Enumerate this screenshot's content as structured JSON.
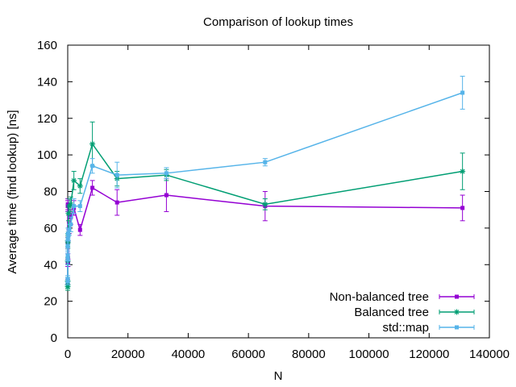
{
  "chart_data": {
    "type": "line",
    "title": "Comparison of lookup times",
    "xlabel": "N",
    "ylabel": "Average time (find lookup) [ns]",
    "xlim": [
      0,
      140000
    ],
    "ylim": [
      0,
      160
    ],
    "xticks": [
      0,
      20000,
      40000,
      60000,
      80000,
      100000,
      120000,
      140000
    ],
    "xtick_labels": [
      "0",
      "20000",
      "40000",
      "60000",
      "80000",
      "100000",
      "120000",
      "140000"
    ],
    "yticks": [
      0,
      20,
      40,
      60,
      80,
      100,
      120,
      140,
      160
    ],
    "ytick_labels": [
      "0",
      "20",
      "40",
      "60",
      "80",
      "100",
      "120",
      "140",
      "160"
    ],
    "grid": false,
    "legend_position": "bottom-right",
    "error_bars": true,
    "series": [
      {
        "name": "Non-balanced tree",
        "color": "#9400d3",
        "marker": "filled-square",
        "points": [
          {
            "x": 2,
            "y": 72,
            "err": 3
          },
          {
            "x": 4,
            "y": 30,
            "err": 2
          },
          {
            "x": 8,
            "y": 41,
            "err": 2
          },
          {
            "x": 16,
            "y": 52,
            "err": 3
          },
          {
            "x": 32,
            "y": 73,
            "err": 3
          },
          {
            "x": 64,
            "y": 44,
            "err": 2
          },
          {
            "x": 128,
            "y": 41,
            "err": 2
          },
          {
            "x": 256,
            "y": 56,
            "err": 3
          },
          {
            "x": 512,
            "y": 60,
            "err": 3
          },
          {
            "x": 1024,
            "y": 66,
            "err": 4
          },
          {
            "x": 2048,
            "y": 71,
            "err": 4
          },
          {
            "x": 4096,
            "y": 59,
            "err": 3
          },
          {
            "x": 8192,
            "y": 82,
            "err": 4
          },
          {
            "x": 16384,
            "y": 74,
            "err": 7
          },
          {
            "x": 32768,
            "y": 78,
            "err": 9
          },
          {
            "x": 65536,
            "y": 72,
            "err": 8
          },
          {
            "x": 131072,
            "y": 71,
            "err": 7
          }
        ]
      },
      {
        "name": "Balanced tree",
        "color": "#009e73",
        "marker": "star",
        "points": [
          {
            "x": 2,
            "y": 31,
            "err": 2
          },
          {
            "x": 4,
            "y": 29,
            "err": 2
          },
          {
            "x": 8,
            "y": 28,
            "err": 2
          },
          {
            "x": 16,
            "y": 42,
            "err": 2
          },
          {
            "x": 32,
            "y": 53,
            "err": 3
          },
          {
            "x": 64,
            "y": 52,
            "err": 3
          },
          {
            "x": 128,
            "y": 57,
            "err": 3
          },
          {
            "x": 256,
            "y": 68,
            "err": 4
          },
          {
            "x": 512,
            "y": 72,
            "err": 4
          },
          {
            "x": 1024,
            "y": 73,
            "err": 4
          },
          {
            "x": 2048,
            "y": 86,
            "err": 5
          },
          {
            "x": 4096,
            "y": 83,
            "err": 4
          },
          {
            "x": 8192,
            "y": 106,
            "err": 12
          },
          {
            "x": 16384,
            "y": 87,
            "err": 4
          },
          {
            "x": 32768,
            "y": 89,
            "err": 3
          },
          {
            "x": 65536,
            "y": 73,
            "err": 3
          },
          {
            "x": 131072,
            "y": 91,
            "err": 10
          }
        ]
      },
      {
        "name": "std::map",
        "color": "#56b4e9",
        "marker": "filled-square",
        "points": [
          {
            "x": 2,
            "y": 32,
            "err": 2
          },
          {
            "x": 4,
            "y": 31,
            "err": 2
          },
          {
            "x": 8,
            "y": 45,
            "err": 3
          },
          {
            "x": 16,
            "y": 50,
            "err": 3
          },
          {
            "x": 32,
            "y": 43,
            "err": 3
          },
          {
            "x": 64,
            "y": 54,
            "err": 3
          },
          {
            "x": 128,
            "y": 57,
            "err": 3
          },
          {
            "x": 256,
            "y": 56,
            "err": 3
          },
          {
            "x": 512,
            "y": 59,
            "err": 3
          },
          {
            "x": 1024,
            "y": 62,
            "err": 4
          },
          {
            "x": 2048,
            "y": 72,
            "err": 4
          },
          {
            "x": 4096,
            "y": 72,
            "err": 3
          },
          {
            "x": 8192,
            "y": 94,
            "err": 4
          },
          {
            "x": 16384,
            "y": 89,
            "err": 7
          },
          {
            "x": 32768,
            "y": 90,
            "err": 3
          },
          {
            "x": 65536,
            "y": 96,
            "err": 2
          },
          {
            "x": 131072,
            "y": 134,
            "err": 9
          }
        ]
      }
    ]
  }
}
